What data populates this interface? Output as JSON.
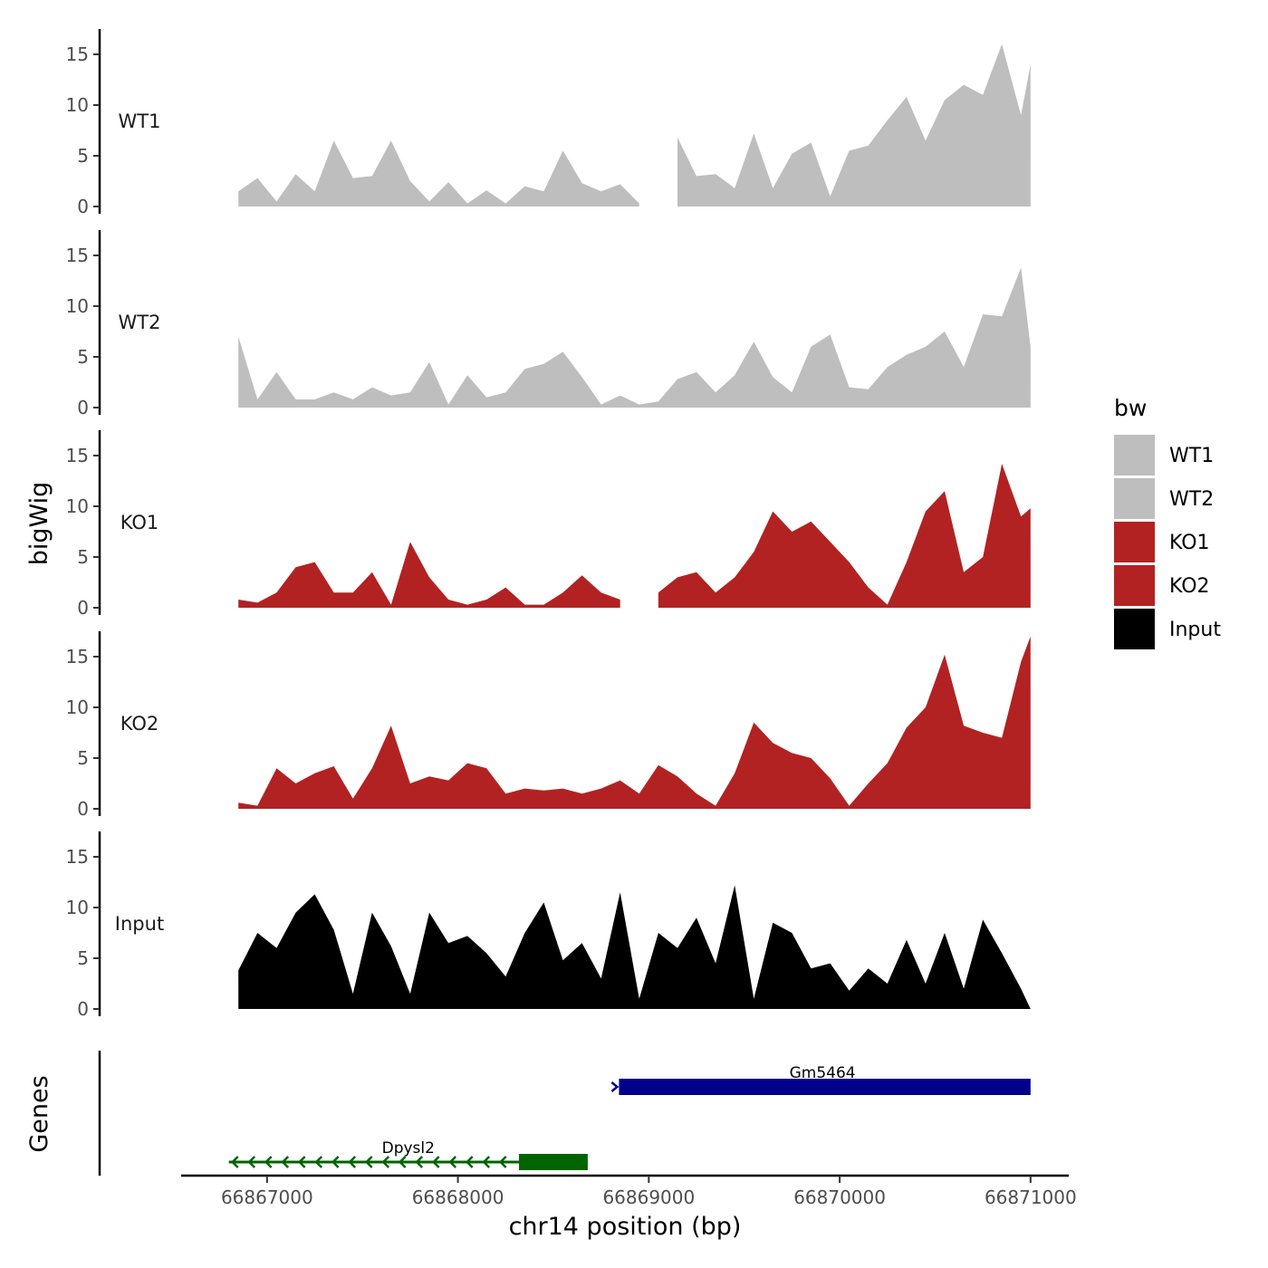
{
  "chart_data": {
    "type": "area",
    "title": "",
    "ylabel": "bigWig",
    "xlabel": "chr14 position (bp)",
    "genes_label": "Genes",
    "xlim": [
      66866550,
      66871200
    ],
    "ylim": [
      0,
      17.5
    ],
    "y_ticks": [
      0,
      5,
      10,
      15
    ],
    "x_ticks": [
      66867000,
      66868000,
      66869000,
      66870000,
      66871000
    ],
    "x_tick_labels": [
      "66867000",
      "66868000",
      "66869000",
      "66870000",
      "66871000"
    ],
    "legend": {
      "title": "bw",
      "entries": [
        {
          "name": "WT1",
          "color": "#bebebe"
        },
        {
          "name": "WT2",
          "color": "#bebebe"
        },
        {
          "name": "KO1",
          "color": "#b22222"
        },
        {
          "name": "KO2",
          "color": "#b22222"
        },
        {
          "name": "Input",
          "color": "#000000"
        }
      ]
    },
    "x": [
      66866850,
      66866950,
      66867050,
      66867150,
      66867250,
      66867350,
      66867450,
      66867550,
      66867650,
      66867750,
      66867850,
      66867950,
      66868050,
      66868150,
      66868250,
      66868350,
      66868450,
      66868550,
      66868650,
      66868750,
      66868850,
      66868950,
      66869050,
      66869150,
      66869250,
      66869350,
      66869450,
      66869550,
      66869650,
      66869750,
      66869850,
      66869950,
      66870050,
      66870150,
      66870250,
      66870350,
      66870450,
      66870550,
      66870650,
      66870750,
      66870850,
      66870950,
      66871000
    ],
    "series": [
      {
        "name": "WT1",
        "color": "#bebebe",
        "values": [
          1.5,
          2.8,
          0.5,
          3.2,
          1.5,
          6.5,
          2.8,
          3.0,
          6.5,
          2.5,
          0.5,
          2.4,
          0.3,
          1.6,
          0.3,
          2.0,
          1.5,
          5.5,
          2.3,
          1.5,
          2.2,
          0.3,
          null,
          6.8,
          3.0,
          3.2,
          1.8,
          7.2,
          1.8,
          5.2,
          6.3,
          1.0,
          5.5,
          6.0,
          8.5,
          10.8,
          6.5,
          10.5,
          12.0,
          11.0,
          16.0,
          9.0,
          14.0
        ]
      },
      {
        "name": "WT2",
        "color": "#bebebe",
        "values": [
          7.0,
          0.8,
          3.5,
          0.8,
          0.8,
          1.5,
          0.8,
          2.0,
          1.2,
          1.5,
          4.5,
          0.3,
          3.2,
          1.0,
          1.5,
          3.8,
          4.3,
          5.5,
          3.0,
          0.3,
          1.2,
          0.3,
          0.6,
          2.8,
          3.5,
          1.5,
          3.2,
          6.5,
          3.0,
          1.5,
          6.0,
          7.2,
          2.0,
          1.8,
          4.0,
          5.2,
          6.0,
          7.5,
          4.0,
          9.2,
          9.0,
          13.8,
          6.0
        ]
      },
      {
        "name": "KO1",
        "color": "#b22222",
        "values": [
          0.8,
          0.5,
          1.5,
          4.0,
          4.5,
          1.5,
          1.5,
          3.5,
          0.3,
          6.5,
          3.0,
          0.8,
          0.3,
          0.8,
          2.0,
          0.3,
          0.3,
          1.5,
          3.2,
          1.5,
          0.8,
          null,
          1.5,
          3.0,
          3.5,
          1.5,
          3.0,
          5.5,
          9.5,
          7.5,
          8.5,
          6.5,
          4.5,
          2.0,
          0.3,
          4.5,
          9.5,
          11.5,
          3.5,
          5.0,
          14.2,
          9.0,
          9.8
        ]
      },
      {
        "name": "KO2",
        "color": "#b22222",
        "values": [
          0.6,
          0.3,
          4.0,
          2.5,
          3.5,
          4.2,
          1.0,
          4.0,
          8.2,
          2.5,
          3.2,
          2.8,
          4.5,
          4.0,
          1.5,
          2.0,
          1.8,
          2.0,
          1.5,
          2.0,
          2.8,
          1.5,
          4.3,
          3.2,
          1.5,
          0.3,
          3.5,
          8.5,
          6.5,
          5.5,
          5.0,
          3.0,
          0.3,
          2.5,
          4.5,
          8.0,
          10.0,
          15.2,
          8.2,
          7.5,
          7.0,
          14.5,
          17.0
        ]
      },
      {
        "name": "Input",
        "color": "#000000",
        "values": [
          3.8,
          7.5,
          6.0,
          9.5,
          11.3,
          7.8,
          1.5,
          9.5,
          6.2,
          1.5,
          9.5,
          6.5,
          7.2,
          5.5,
          3.2,
          7.5,
          10.5,
          4.8,
          6.5,
          3.0,
          11.5,
          1.0,
          7.5,
          6.0,
          9.0,
          4.5,
          12.2,
          1.0,
          8.5,
          7.5,
          4.0,
          4.5,
          1.8,
          4.0,
          2.5,
          6.8,
          2.5,
          7.5,
          2.0,
          8.8,
          5.5,
          2.0,
          0.0
        ]
      }
    ],
    "genes": [
      {
        "name": "Gm5464",
        "start": 66868820,
        "end": 66871000,
        "strand": "+",
        "color": "#00008b",
        "row": 1
      },
      {
        "name": "Dpysl2",
        "start": 66866800,
        "end": 66868680,
        "strand": "-",
        "color": "#006400",
        "row": 2,
        "thick_start": 66868320,
        "thick_end": 66868680
      }
    ]
  }
}
